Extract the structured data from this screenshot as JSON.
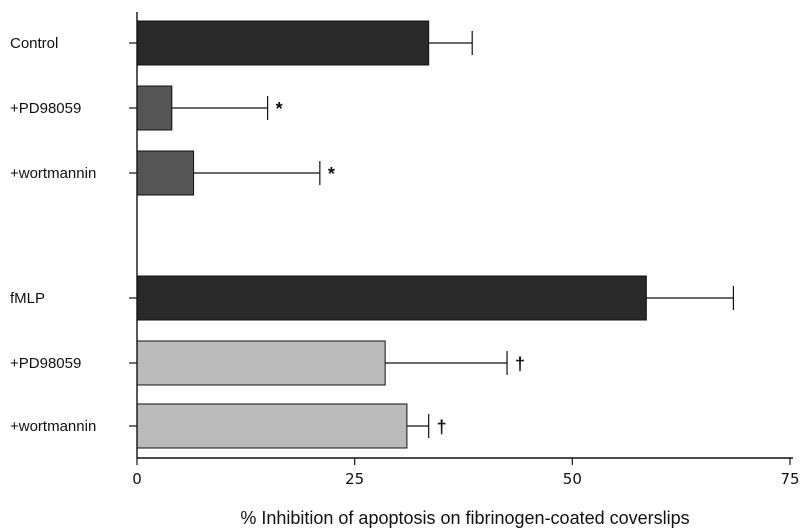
{
  "chart_data": {
    "type": "bar",
    "orientation": "horizontal",
    "categories": [
      "Control",
      "+PD98059",
      "+wortmannin",
      "fMLP",
      "+PD98059",
      "+wortmannin"
    ],
    "values": [
      33.5,
      4.0,
      6.5,
      58.5,
      28.5,
      31.0
    ],
    "errors": [
      5.0,
      11.0,
      14.5,
      10.0,
      14.0,
      2.5
    ],
    "marks": [
      "",
      "*",
      "*",
      "",
      "†",
      "†"
    ],
    "bar_colors": [
      "#2a2a2a",
      "#555555",
      "#555555",
      "#2a2a2a",
      "#bbbbbb",
      "#bbbbbb"
    ],
    "xlabel": "% Inhibition of apoptosis on fibrinogen-coated coverslips",
    "xlim": [
      0,
      75
    ],
    "xticks": [
      "0",
      "25",
      "50",
      "75"
    ],
    "grid": false,
    "legend": "none"
  }
}
